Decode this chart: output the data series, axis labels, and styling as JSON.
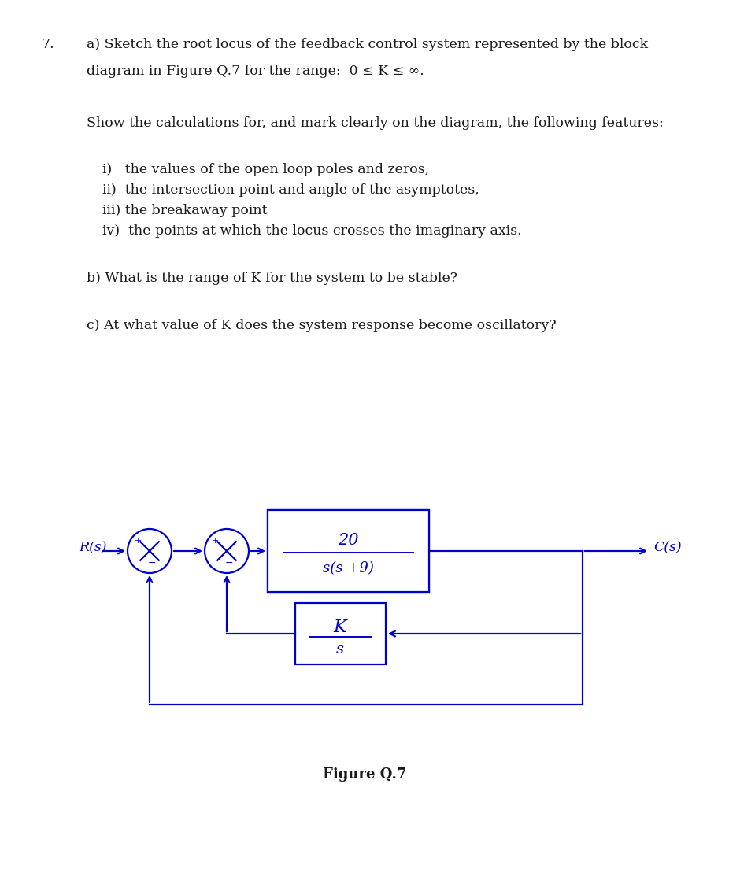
{
  "title_number": "7.",
  "question_a_line1": "a) Sketch the root locus of the feedback control system represented by the block",
  "question_a_line2": "diagram in Figure Q.7 for the range:  0 ≤ K ≤ ∞.",
  "question_show": "Show the calculations for, and mark clearly on the diagram, the following features:",
  "item_i": "i)   the values of the open loop poles and zeros,",
  "item_ii": "ii)  the intersection point and angle of the asymptotes,",
  "item_iii": "iii) the breakaway point",
  "item_iv": "iv)  the points at which the locus crosses the imaginary axis.",
  "question_b": "b) What is the range of ​K​ for the system to be stable?",
  "question_c": "c) At what value of ​K​ does the system response become oscillatory?",
  "fig_caption": "Figure Q.7",
  "Rs_label": "R(s)",
  "Cs_label": "C(s)",
  "plant_num": "20",
  "plant_den": "s(s +9)",
  "fb_num": "K",
  "fb_den": "s",
  "blue": "#0000CC",
  "black": "#1a1a1a",
  "white": "#ffffff",
  "lw": 1.6,
  "fs_text": 12.5,
  "fs_block": 14
}
